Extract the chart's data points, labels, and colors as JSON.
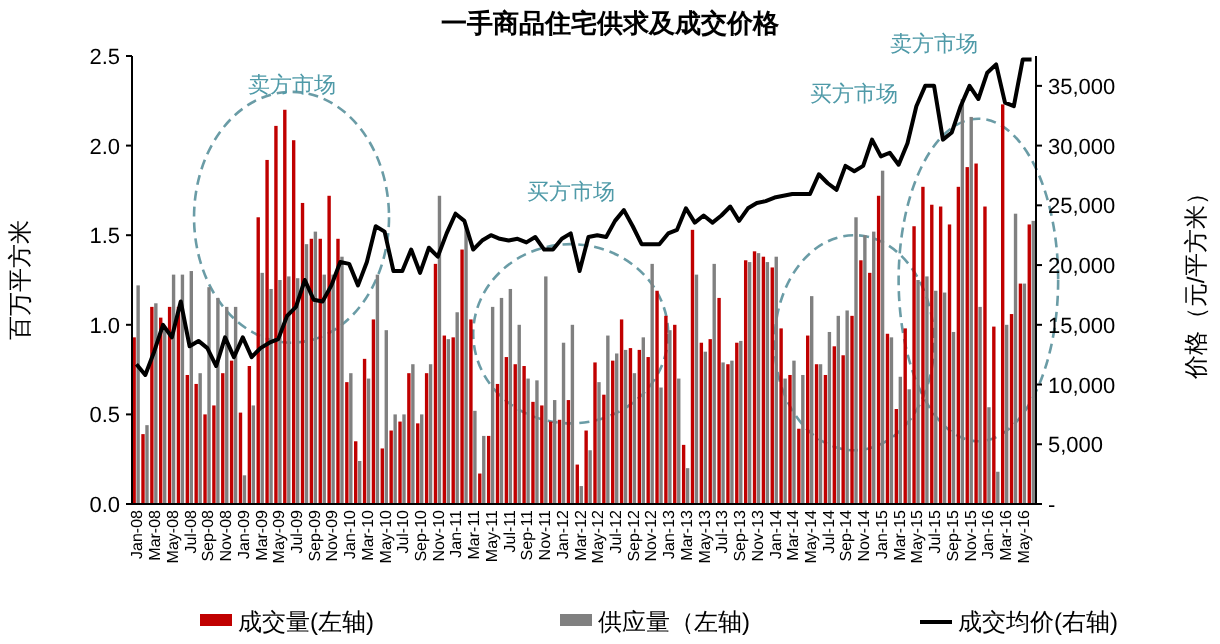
{
  "chart_data": {
    "type": "bar",
    "title": "一手商品住宅供求及成交价格",
    "ylabel": "百万平方米",
    "y2label": "价格（元/平方米）",
    "categories": [
      "Jan-08",
      null,
      "Mar-08",
      null,
      "May-08",
      null,
      "Jul-08",
      null,
      "Sep-08",
      null,
      "Nov-08",
      null,
      "Jan-09",
      null,
      "Mar-09",
      null,
      "May-09",
      null,
      "Jul-09",
      null,
      "Sep-09",
      null,
      "Nov-09",
      null,
      "Jan-10",
      null,
      "Mar-10",
      null,
      "May-10",
      null,
      "Jul-10",
      null,
      "Sep-10",
      null,
      "Nov-10",
      null,
      "Jan-11",
      null,
      "Mar-11",
      null,
      "May-11",
      null,
      "Jul-11",
      null,
      "Sep-11",
      null,
      "Nov-11",
      null,
      "Jan-12",
      null,
      "Mar-12",
      null,
      "May-12",
      null,
      "Jul-12",
      null,
      "Sep-12",
      null,
      "Nov-12",
      null,
      "Jan-13",
      null,
      "Mar-13",
      null,
      "May-13",
      null,
      "Jul-13",
      null,
      "Sep-13",
      null,
      "Nov-13",
      null,
      "Jan-14",
      null,
      "Mar-14",
      null,
      "May-14",
      null,
      "Jul-14",
      null,
      "Sep-14",
      null,
      "Nov-14",
      null,
      "Jan-15",
      null,
      "Mar-15",
      null,
      "May-15",
      null,
      "Jul-15",
      null,
      "Sep-15",
      null,
      "Nov-15",
      null,
      "Jan-16",
      null,
      "Mar-16",
      null,
      "May-16",
      null
    ],
    "series": [
      {
        "name": "成交量(左轴)",
        "type": "bar",
        "color": "#c00000",
        "values": [
          0.93,
          0.39,
          1.1,
          1.04,
          1.1,
          1.1,
          0.72,
          0.67,
          0.5,
          0.55,
          0.73,
          0.8,
          0.51,
          0.77,
          1.6,
          1.92,
          2.11,
          2.2,
          2.03,
          1.68,
          1.48,
          1.48,
          1.72,
          1.48,
          0.68,
          0.35,
          0.81,
          1.03,
          0.31,
          0.41,
          0.46,
          0.73,
          0.45,
          0.73,
          1.34,
          0.94,
          0.93,
          1.42,
          1.03,
          0.17,
          0.38,
          0.67,
          0.82,
          0.78,
          0.77,
          0.57,
          0.55,
          0.46,
          0.47,
          0.58,
          0.22,
          0.41,
          0.79,
          0.61,
          0.8,
          1.03,
          0.87,
          0.86,
          0.82,
          1.19,
          1.05,
          1.0,
          0.33,
          1.53,
          0.9,
          0.92,
          1.15,
          0.78,
          0.9,
          1.36,
          1.41,
          1.38,
          1.32,
          0.98,
          0.72,
          0.42,
          0.94,
          0.78,
          0.72,
          0.88,
          0.83,
          1.05,
          1.36,
          1.29,
          1.72,
          0.95,
          0.53,
          0.98,
          1.55,
          1.77,
          1.67,
          1.66,
          1.56,
          1.77,
          1.88,
          1.9,
          1.66,
          0.99,
          2.23,
          1.06,
          1.23,
          1.56
        ]
      },
      {
        "name": "供应量（左轴)",
        "type": "bar",
        "color": "#808080",
        "values": [
          1.22,
          0.44,
          1.12,
          0.98,
          1.28,
          1.28,
          1.3,
          0.73,
          1.21,
          1.15,
          1.1,
          1.1,
          0.16,
          0.55,
          1.29,
          1.2,
          1.25,
          1.27,
          1.26,
          1.45,
          1.52,
          1.28,
          1.28,
          1.38,
          0.73,
          0.24,
          0.7,
          1.28,
          0.97,
          0.5,
          0.5,
          0.78,
          0.5,
          0.78,
          1.72,
          0.92,
          1.07,
          1.55,
          0.52,
          0.38,
          1.1,
          1.15,
          1.2,
          1.0,
          0.7,
          0.69,
          1.27,
          0.58,
          0.9,
          1.0,
          0.1,
          0.3,
          0.68,
          0.94,
          0.84,
          0.86,
          0.73,
          0.93,
          1.34,
          0.65,
          0.97,
          0.7,
          0.2,
          1.28,
          0.85,
          1.34,
          0.79,
          0.8,
          0.91,
          1.35,
          1.4,
          1.35,
          1.38,
          0.7,
          0.8,
          0.72,
          1.16,
          0.78,
          0.96,
          1.05,
          1.08,
          1.6,
          1.5,
          1.52,
          1.86,
          0.93,
          0.71,
          0.64,
          1.25,
          1.27,
          1.19,
          1.18,
          0.96,
          2.26,
          2.16,
          1.1,
          0.54,
          0.18,
          1.0,
          1.62,
          1.23,
          1.58
        ]
      },
      {
        "name": "成交均价(右轴)",
        "type": "line",
        "axis": "y2",
        "color": "#000000",
        "values": [
          11700,
          10800,
          12750,
          15000,
          13950,
          16950,
          13200,
          13650,
          13050,
          11550,
          13950,
          12300,
          13950,
          12300,
          13050,
          13500,
          13800,
          15750,
          16500,
          18750,
          17100,
          16950,
          18300,
          20250,
          20100,
          18300,
          20250,
          23250,
          22800,
          19500,
          19500,
          21300,
          19350,
          21450,
          20700,
          22650,
          24300,
          23700,
          21300,
          22050,
          22500,
          22200,
          22050,
          22200,
          21900,
          22350,
          21300,
          21300,
          22200,
          22650,
          19500,
          22350,
          22500,
          22350,
          23700,
          24600,
          23250,
          21750,
          21750,
          21750,
          22650,
          22950,
          24750,
          23550,
          24150,
          23550,
          24150,
          24900,
          23700,
          24750,
          25200,
          25350,
          25650,
          25800,
          25950,
          25950,
          25950,
          27600,
          26850,
          26300,
          28300,
          27850,
          28300,
          30500,
          29100,
          29400,
          28400,
          30200,
          33300,
          35000,
          35000,
          30500,
          31100,
          33300,
          35000,
          33900,
          36100,
          36800,
          33600,
          33300,
          37200,
          37200
        ]
      }
    ],
    "ylim": [
      0,
      2.5
    ],
    "yticks": [
      {
        "value": 0,
        "label": "0.0"
      },
      {
        "value": 0.5,
        "label": "0.5"
      },
      {
        "value": 1,
        "label": "1.0"
      },
      {
        "value": 1.5,
        "label": "1.5"
      },
      {
        "value": 2,
        "label": "2.0"
      },
      {
        "value": 2.5,
        "label": "2.5"
      }
    ],
    "y2lim": [
      0,
      37500
    ],
    "y2ticks": [
      {
        "value": 0,
        "label": "-"
      },
      {
        "value": 5000,
        "label": "5,000"
      },
      {
        "value": 10000,
        "label": "10,000"
      },
      {
        "value": 15000,
        "label": "15,000"
      },
      {
        "value": 20000,
        "label": "20,000"
      },
      {
        "value": 25000,
        "label": "25,000"
      },
      {
        "value": 30000,
        "label": "30,000"
      },
      {
        "value": 35000,
        "label": "35,000"
      }
    ],
    "annotations": [
      "卖方市场",
      "买方市场",
      "买方市场",
      "卖方市场"
    ],
    "legend": "bottom",
    "grid": false
  }
}
